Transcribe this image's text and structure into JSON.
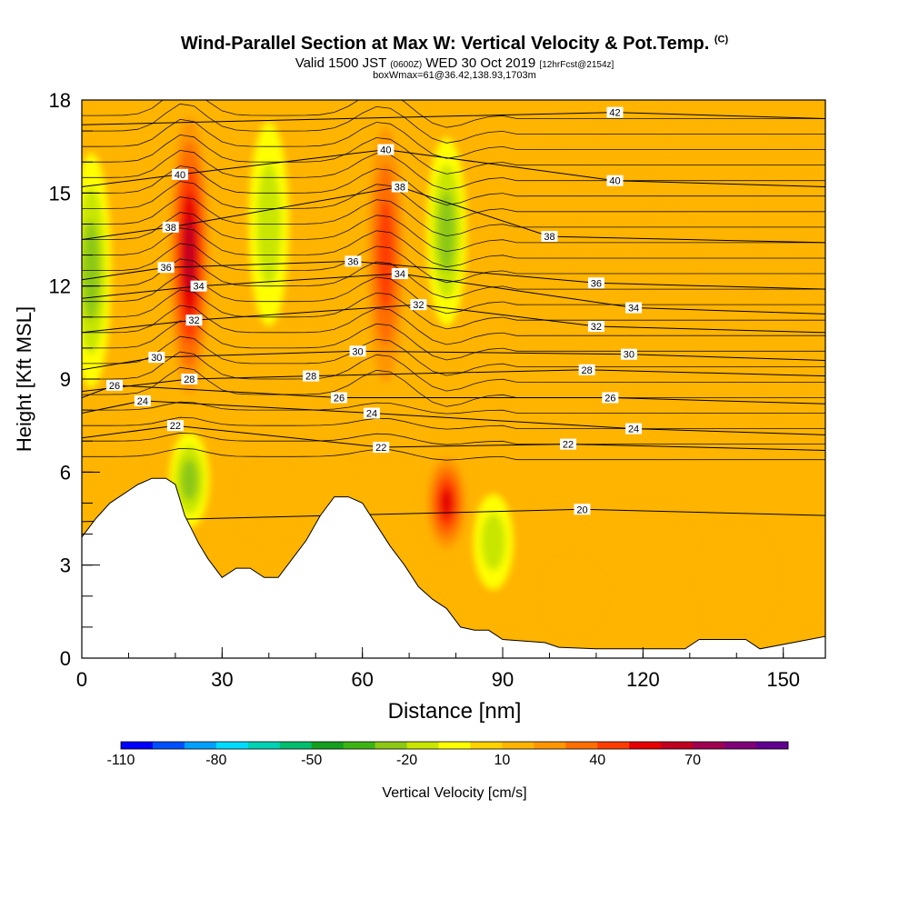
{
  "title": {
    "main": "Wind-Parallel Section at Max W: Vertical Velocity & Pot.Temp.",
    "copyright": "(C)",
    "valid_prefix": "Valid 1500 JST",
    "valid_utc": "(0600Z)",
    "valid_date": "WED 30 Oct 2019",
    "forecast": "[12hrFcst@2154z]",
    "box_info": "boxWmax=61@36.42,138.93,1703m"
  },
  "chart_data": {
    "type": "heatmap",
    "xlabel": "Distance [nm]",
    "ylabel": "Height [Kft MSL]",
    "xlim": [
      0,
      159
    ],
    "ylim": [
      0,
      18
    ],
    "x_ticks": [
      0,
      30,
      60,
      90,
      120,
      150
    ],
    "y_ticks": [
      0,
      3,
      6,
      9,
      12,
      15,
      18
    ],
    "colorbar": {
      "title": "Vertical Velocity [cm/s]",
      "tick_labels": [
        "-110",
        "-80",
        "-50",
        "-20",
        "10",
        "40",
        "70"
      ],
      "colors": [
        "#0000ff",
        "#0050ff",
        "#00a0ff",
        "#00dcff",
        "#00d2b4",
        "#00be6e",
        "#14a01e",
        "#3cb414",
        "#8cc814",
        "#c8e600",
        "#ffff00",
        "#ffd200",
        "#ffb400",
        "#ff9600",
        "#ff6e00",
        "#ff3c00",
        "#e60000",
        "#c00020",
        "#a00050",
        "#800078",
        "#600090"
      ]
    },
    "updrafts": [
      {
        "x": 23,
        "z_bottom": 8,
        "z_top": 18,
        "peak_w": 65
      },
      {
        "x": 65,
        "z_bottom": 8,
        "z_top": 18,
        "peak_w": 45
      },
      {
        "x": 78,
        "z_bottom": 3.5,
        "z_top": 6.5,
        "peak_w": 50
      }
    ],
    "downdrafts": [
      {
        "x": 2,
        "z_bottom": 9,
        "z_top": 16,
        "peak_w": -30
      },
      {
        "x": 23,
        "z_bottom": 4.5,
        "z_top": 7,
        "peak_w": -30
      },
      {
        "x": 40,
        "z_bottom": 11,
        "z_top": 17,
        "peak_w": -25
      },
      {
        "x": 78,
        "z_bottom": 11,
        "z_top": 16.5,
        "peak_w": -35
      },
      {
        "x": 88,
        "z_bottom": 2.5,
        "z_top": 5,
        "peak_w": -25
      }
    ],
    "terrain_top_kft": [
      [
        0,
        3.9
      ],
      [
        3,
        4.5
      ],
      [
        6,
        5
      ],
      [
        9,
        5.3
      ],
      [
        12,
        5.6
      ],
      [
        15,
        5.8
      ],
      [
        18,
        5.8
      ],
      [
        20,
        5.6
      ],
      [
        22,
        4.6
      ],
      [
        25,
        3.7
      ],
      [
        27,
        3.2
      ],
      [
        30,
        2.6
      ],
      [
        33,
        2.9
      ],
      [
        36,
        2.9
      ],
      [
        39,
        2.6
      ],
      [
        42,
        2.6
      ],
      [
        45,
        3.2
      ],
      [
        48,
        3.8
      ],
      [
        51,
        4.6
      ],
      [
        54,
        5.2
      ],
      [
        57,
        5.2
      ],
      [
        60,
        5
      ],
      [
        63,
        4.3
      ],
      [
        66,
        3.6
      ],
      [
        69,
        3
      ],
      [
        72,
        2.3
      ],
      [
        75,
        1.9
      ],
      [
        78,
        1.6
      ],
      [
        81,
        1
      ],
      [
        84,
        0.9
      ],
      [
        87,
        0.9
      ],
      [
        90,
        0.6
      ],
      [
        99,
        0.5
      ],
      [
        102,
        0.35
      ],
      [
        110,
        0.3
      ],
      [
        129,
        0.3
      ],
      [
        132,
        0.6
      ],
      [
        142,
        0.6
      ],
      [
        145,
        0.3
      ],
      [
        159,
        0.7
      ]
    ],
    "theta_contours": [
      {
        "value": "20",
        "label_x": 107,
        "label_z": 4.8
      },
      {
        "value": "22",
        "label_x": 20,
        "label_z": 7.5
      },
      {
        "value": "22",
        "label_x": 64,
        "label_z": 6.8
      },
      {
        "value": "22",
        "label_x": 104,
        "label_z": 6.9
      },
      {
        "value": "24",
        "label_x": 13,
        "label_z": 8.3
      },
      {
        "value": "24",
        "label_x": 62,
        "label_z": 7.9
      },
      {
        "value": "24",
        "label_x": 118,
        "label_z": 7.4
      },
      {
        "value": "26",
        "label_x": 7,
        "label_z": 8.8
      },
      {
        "value": "26",
        "label_x": 55,
        "label_z": 8.4
      },
      {
        "value": "26",
        "label_x": 113,
        "label_z": 8.4
      },
      {
        "value": "28",
        "label_x": 23,
        "label_z": 9
      },
      {
        "value": "28",
        "label_x": 49,
        "label_z": 9.1
      },
      {
        "value": "28",
        "label_x": 108,
        "label_z": 9.3
      },
      {
        "value": "30",
        "label_x": 16,
        "label_z": 9.7
      },
      {
        "value": "30",
        "label_x": 59,
        "label_z": 9.9
      },
      {
        "value": "30",
        "label_x": 117,
        "label_z": 9.8
      },
      {
        "value": "32",
        "label_x": 24,
        "label_z": 10.9
      },
      {
        "value": "32",
        "label_x": 72,
        "label_z": 11.4
      },
      {
        "value": "32",
        "label_x": 110,
        "label_z": 10.7
      },
      {
        "value": "34",
        "label_x": 25,
        "label_z": 12
      },
      {
        "value": "34",
        "label_x": 68,
        "label_z": 12.4
      },
      {
        "value": "34",
        "label_x": 118,
        "label_z": 11.3
      },
      {
        "value": "36",
        "label_x": 18,
        "label_z": 12.6
      },
      {
        "value": "36",
        "label_x": 58,
        "label_z": 12.8
      },
      {
        "value": "36",
        "label_x": 110,
        "label_z": 12.1
      },
      {
        "value": "38",
        "label_x": 19,
        "label_z": 13.9
      },
      {
        "value": "38",
        "label_x": 68,
        "label_z": 15.2
      },
      {
        "value": "38",
        "label_x": 100,
        "label_z": 13.6
      },
      {
        "value": "40",
        "label_x": 21,
        "label_z": 15.6
      },
      {
        "value": "40",
        "label_x": 65,
        "label_z": 16.4
      },
      {
        "value": "40",
        "label_x": 114,
        "label_z": 15.4
      },
      {
        "value": "42",
        "label_x": 114,
        "label_z": 17.6
      }
    ]
  }
}
